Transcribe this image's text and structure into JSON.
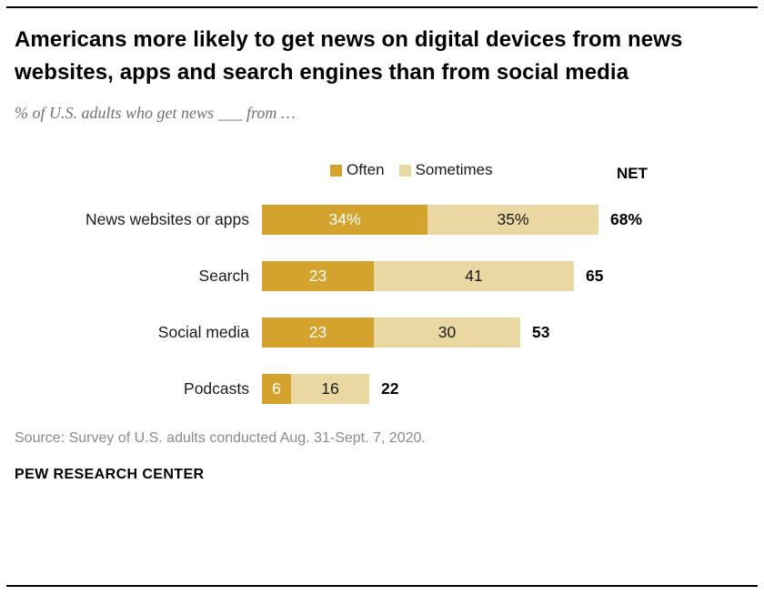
{
  "chart_data": {
    "type": "bar",
    "title": "Americans more likely to get news on digital devices from news websites, apps and search engines than from social media",
    "subtitle": "% of U.S. adults who get news ___ from …",
    "categories": [
      "News websites or apps",
      "Search",
      "Social media",
      "Podcasts"
    ],
    "series": [
      {
        "name": "Often",
        "color": "#d3a32e",
        "values": [
          34,
          23,
          23,
          6
        ],
        "labels": [
          "34%",
          "23",
          "23",
          "6"
        ],
        "label_color": "#ffffff"
      },
      {
        "name": "Sometimes",
        "color": "#e9d8a2",
        "values": [
          35,
          41,
          30,
          16
        ],
        "labels": [
          "35%",
          "41",
          "30",
          "16"
        ],
        "label_color": "#1a1a1a"
      }
    ],
    "net": {
      "header": "NET",
      "values": [
        "68%",
        "65",
        "53",
        "22"
      ]
    },
    "xlim": [
      0,
      69
    ],
    "legend_position": "top",
    "grid": false
  },
  "footer": {
    "source": "Source: Survey of U.S. adults conducted Aug. 31-Sept. 7, 2020.",
    "brand": "PEW RESEARCH CENTER"
  }
}
